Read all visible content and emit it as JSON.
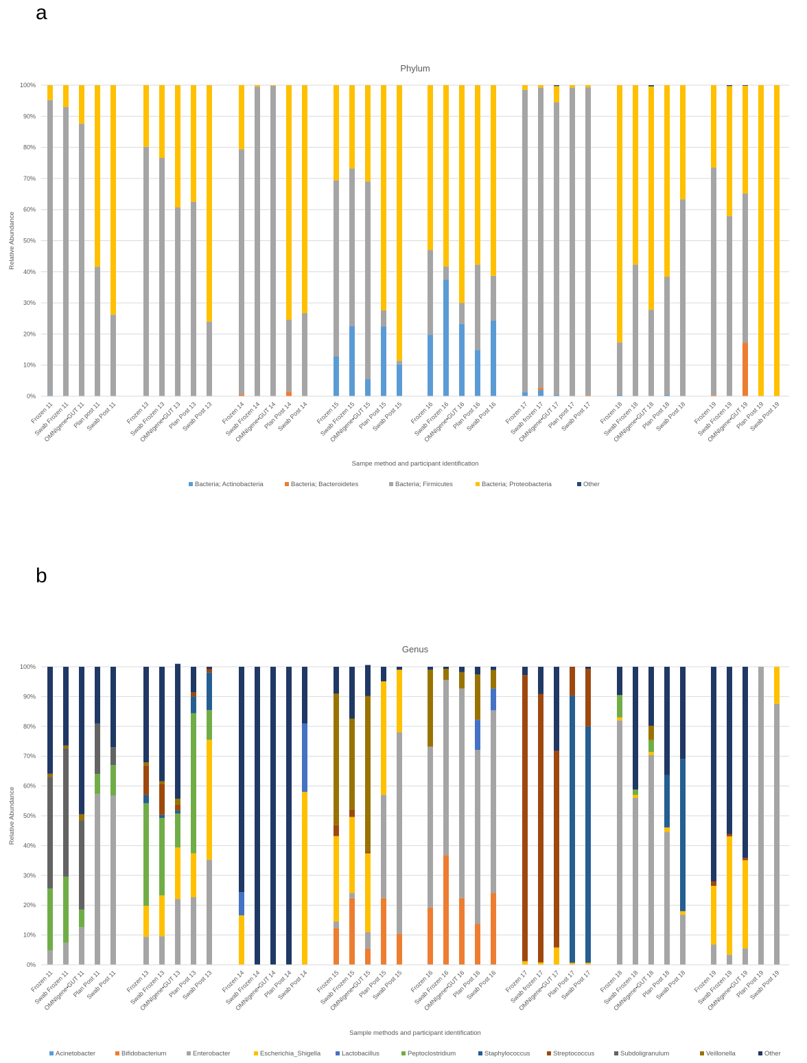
{
  "panels": {
    "a": "a",
    "b": "b"
  },
  "chart_data": [
    {
      "type": "bar",
      "stacked": true,
      "title": "Phylum",
      "xlabel": "Sampe method  and participant identification",
      "ylabel": "Relative Abundance",
      "ylim": [
        0,
        100
      ],
      "yticks": [
        "0%",
        "10%",
        "20%",
        "30%",
        "40%",
        "50%",
        "60%",
        "70%",
        "80%",
        "90%",
        "100%"
      ],
      "legend_position": "bottom",
      "categories": [
        "Frozen 11",
        "Swab Frozen 11",
        "OMNIgene•GUT 11",
        "Plan post 11",
        "Swab Post 11",
        "Frozen 13",
        "Swab Frozen 13",
        "OMNIgene•GUT 13",
        "Plan Post 13",
        "Swab Post 13",
        "Frozen 14",
        "Swab Frozen 14",
        "OMNIgene•GUT 14",
        "Plan Post 14",
        "Swab Post 14",
        "Frozen 15",
        "Swab Frozen 15",
        "OMNIgene•GUT 15",
        "Plan Post 15",
        "Swab Post 15",
        "Frozen 16",
        "Swab Frozen 16",
        "OMNIgene•GUT 16",
        "Plan Post 16",
        "Swab Post 16",
        "Frozen 17",
        "Swab frozen 17",
        "OMNIgene•GUT 17",
        "Plan post 17",
        "Swab Post 17",
        "Frozen 18",
        "Swab Frozen 18",
        "OMNIgene•GUT 18",
        "Plan Post 18",
        "Swab Post 18",
        "Frozen 19",
        "Swab Frozen 19",
        "OMNIgene•GUT 19",
        "Plan Post 19",
        "Swab Post 19"
      ],
      "series": [
        {
          "name": "Bacteria; Actinobacteria",
          "color": "#5b9bd5",
          "values": [
            0.3,
            0,
            0,
            0,
            0,
            0,
            0,
            0,
            0,
            0,
            0,
            0,
            0,
            0,
            0,
            12.8,
            22.6,
            5.5,
            22.4,
            10.2,
            19.8,
            37.5,
            23.2,
            14.8,
            24.3,
            1.3,
            2.0,
            0.5,
            0,
            0,
            0.5,
            0,
            0,
            0.5,
            0,
            0,
            0,
            0,
            0,
            0
          ]
        },
        {
          "name": "Bacteria; Bacteroidetes",
          "color": "#ed7d31",
          "values": [
            0,
            0,
            0,
            0,
            0,
            0,
            0,
            0,
            0,
            0,
            0.6,
            0,
            0,
            1.5,
            0,
            0,
            0,
            0,
            0,
            0,
            0,
            0,
            0,
            0,
            0,
            0,
            0.8,
            0,
            0,
            0.4,
            0,
            0,
            0,
            0,
            0,
            0.4,
            0,
            17.2,
            0,
            0
          ]
        },
        {
          "name": "Bacteria; Firmicutes",
          "color": "#a5a5a5",
          "values": [
            94.9,
            93.0,
            87.6,
            41.6,
            26.2,
            80.2,
            76.6,
            60.7,
            62.5,
            24.0,
            78.8,
            99.5,
            99.8,
            23.1,
            26.7,
            56.6,
            50.6,
            63.5,
            5.2,
            1.2,
            27.2,
            4.2,
            6.8,
            27.5,
            14.4,
            97.2,
            96.4,
            94.0,
            99.2,
            98.9,
            16.8,
            42.3,
            27.8,
            37.9,
            63.3,
            73.1,
            57.9,
            48.0,
            0,
            0
          ]
        },
        {
          "name": "Bacteria; Proteobacteria",
          "color": "#ffc000",
          "values": [
            4.8,
            7.0,
            12.4,
            58.4,
            73.8,
            19.8,
            23.4,
            39.3,
            37.5,
            76.0,
            20.6,
            0.5,
            0.2,
            75.4,
            73.3,
            30.6,
            26.8,
            31.0,
            72.4,
            88.6,
            53.0,
            58.3,
            70.0,
            57.7,
            61.3,
            1.5,
            0.8,
            5.2,
            0.8,
            0.7,
            82.7,
            57.7,
            71.8,
            61.6,
            36.7,
            26.5,
            41.8,
            34.6,
            100,
            100
          ]
        },
        {
          "name": "Other",
          "color": "#264478",
          "values": [
            0,
            0,
            0,
            0,
            0,
            0,
            0,
            0,
            0,
            0,
            0,
            0,
            0,
            0,
            0,
            0,
            0,
            0,
            0,
            0,
            0,
            0,
            0,
            0,
            0,
            0,
            0,
            0.3,
            0,
            0,
            0,
            0,
            0.4,
            0,
            0,
            0,
            0.3,
            0.2,
            0,
            0
          ]
        }
      ]
    },
    {
      "type": "bar",
      "stacked": true,
      "title": "Genus",
      "xlabel": "Sample methods and participant identification",
      "ylabel": "Relative Abundance",
      "ylim": [
        0,
        100
      ],
      "yticks": [
        "0%",
        "10%",
        "20%",
        "30%",
        "40%",
        "50%",
        "60%",
        "70%",
        "80%",
        "90%",
        "100%"
      ],
      "legend_position": "bottom",
      "categories": [
        "Frozen 11",
        "Swab Frozen 11",
        "OMNIgene•GUT 11",
        "Plan Post 11",
        "Swab Post 11",
        "Frozen 13",
        "Swab Frozen 13",
        "OMNIgene•GUT 13",
        "Plan Post 13",
        "Swab Post 13",
        "Frozen 14",
        "Swab Frozen 14",
        "OMNIgene•GUT 14",
        "Plan Post 14",
        "Swab Post 14",
        "Frozen 15",
        "Swab Frozen 15",
        "OMNIgene•GUT 15",
        "Plan Post 15",
        "Swab Post 15",
        "Frozen 16",
        "Swab Frozen 16",
        "OMNIgene•GUT 16",
        "Plan Post 16",
        "Swab Post 16",
        "Frozen 17",
        "Swab frozen 17",
        "OMNIgene•GUT 17",
        "Plan Post 17",
        "Swab Post 17",
        "Frozen 18",
        "Swab Frozen 18",
        "OMNIgene•GUT 18",
        "Plan Post 18",
        "Swab Post 18",
        "Frozen 19",
        "Swab Frozen 19",
        "OMNIgene•GUT 19",
        "Plan Post 19",
        "Swab Post 19"
      ],
      "series": [
        {
          "name": "Acinetobacter",
          "color": "#5b9bd5",
          "values": [
            0,
            0,
            0,
            0,
            0,
            0,
            0,
            0,
            0,
            0,
            0,
            0,
            0,
            0,
            0,
            0,
            0,
            0,
            0,
            0,
            0,
            0,
            0,
            0,
            0,
            0,
            0,
            0,
            0,
            0,
            0,
            0,
            0,
            0,
            0,
            0,
            0,
            0,
            0,
            0
          ]
        },
        {
          "name": "Bifidobacterium",
          "color": "#ed7d31",
          "values": [
            0,
            0,
            0,
            0,
            0,
            0,
            0,
            0,
            0,
            0,
            0,
            0,
            0,
            0,
            0,
            12.3,
            22.4,
            5.4,
            22.4,
            10.4,
            19.2,
            36.8,
            22.4,
            13.7,
            24.1,
            0,
            0,
            0,
            0,
            0,
            0,
            0,
            0,
            0,
            0,
            0,
            0,
            0,
            0,
            0
          ]
        },
        {
          "name": "Enterobacter",
          "color": "#a5a5a5",
          "values": [
            4.8,
            7.4,
            12.6,
            57.3,
            56.8,
            9.4,
            9.6,
            22.1,
            22.7,
            35.3,
            0,
            0,
            0,
            0,
            0,
            2.2,
            1.7,
            5.6,
            34.6,
            67.6,
            54.0,
            58.8,
            70.3,
            58.4,
            61.3,
            0,
            0,
            0,
            0,
            0,
            82.0,
            56.0,
            70.4,
            44.6,
            16.8,
            6.8,
            3.4,
            5.5,
            100,
            87.6
          ]
        },
        {
          "name": "Escherichia_Shigella",
          "color": "#ffc000",
          "values": [
            0,
            0,
            0,
            0,
            0,
            10.4,
            13.7,
            17.3,
            14.7,
            40.2,
            16.6,
            0,
            0,
            0,
            58.0,
            28.7,
            25.5,
            26.4,
            38.1,
            21.0,
            0,
            0,
            0,
            0,
            0,
            1.2,
            0.8,
            5.8,
            0.7,
            0.7,
            1.0,
            1.0,
            1.0,
            1.5,
            1.2,
            19.7,
            39.7,
            29.6,
            0,
            12.4
          ]
        },
        {
          "name": "Lactobacillus",
          "color": "#4472c4",
          "values": [
            0,
            0,
            0,
            0,
            0,
            0,
            0,
            0,
            0,
            0,
            7.8,
            0,
            0,
            0,
            23.0,
            0,
            0,
            0,
            0,
            0,
            0,
            0,
            0,
            10.1,
            7.3,
            0,
            0,
            0,
            0,
            0,
            0,
            0,
            0,
            0,
            0,
            0,
            0,
            0,
            0,
            0
          ]
        },
        {
          "name": "Peptoclostridium",
          "color": "#70ad47",
          "values": [
            20.8,
            22.2,
            5.9,
            6.7,
            10.2,
            34.4,
            26.0,
            11.4,
            47.0,
            10.0,
            0,
            0,
            0,
            0,
            0,
            0,
            0,
            0,
            0,
            0,
            0,
            0,
            0,
            0,
            0,
            0,
            0,
            0,
            0,
            0,
            7.5,
            1.8,
            4.0,
            0,
            0,
            0,
            0,
            0,
            0,
            0
          ]
        },
        {
          "name": "Staphylococcus",
          "color": "#255e91",
          "values": [
            0,
            0,
            0,
            0,
            0,
            2.8,
            1.0,
            1.0,
            5.6,
            12.5,
            0,
            0,
            0,
            0,
            0,
            0,
            0,
            0,
            0,
            0,
            0,
            0,
            0,
            0,
            0,
            0,
            0,
            0,
            89.6,
            79.3,
            0,
            0,
            0,
            17.6,
            51.1,
            0,
            0,
            0,
            0,
            0
          ]
        },
        {
          "name": "Streptococcus",
          "color": "#9e480e",
          "values": [
            0,
            0,
            0,
            0,
            0,
            9.9,
            10.3,
            1.9,
            1.4,
            1.2,
            0,
            0,
            0,
            0,
            0,
            3.6,
            2.5,
            0.6,
            0,
            0,
            0,
            0,
            0,
            0,
            0,
            96.0,
            90.1,
            66.0,
            9.6,
            19.3,
            0,
            0,
            0,
            0,
            0,
            1.5,
            0.8,
            0.8,
            0,
            0
          ]
        },
        {
          "name": "Subdoligranulum",
          "color": "#636363",
          "values": [
            37.5,
            43.0,
            30.0,
            17.0,
            6.0,
            0,
            0,
            0,
            0,
            0,
            0,
            0,
            0,
            0,
            0,
            0,
            0,
            0,
            0,
            0,
            0,
            0,
            0,
            0,
            0,
            0,
            0,
            0,
            0,
            0,
            0,
            0,
            0,
            0,
            0,
            0,
            0,
            0,
            0,
            0
          ]
        },
        {
          "name": "Veillonella",
          "color": "#997300",
          "values": [
            1.0,
            1.0,
            2.0,
            0,
            0,
            1.0,
            1.0,
            2.0,
            0,
            0,
            0,
            0,
            0,
            0,
            0,
            44.2,
            30.5,
            52.2,
            0,
            0,
            25.8,
            3.7,
            5.5,
            15.2,
            6.2,
            0,
            0,
            0,
            0,
            0,
            0,
            0,
            4.8,
            0,
            0,
            0,
            0,
            0,
            0,
            0
          ]
        },
        {
          "name": "Other",
          "color": "#203864",
          "values": [
            35.9,
            26.4,
            49.5,
            19.0,
            27.0,
            32.1,
            38.4,
            45.3,
            8.6,
            0.8,
            75.6,
            100,
            100,
            100,
            19.0,
            9.0,
            17.4,
            10.4,
            4.9,
            1.0,
            1.0,
            0.7,
            1.8,
            2.6,
            1.1,
            2.8,
            9.1,
            28.2,
            0.1,
            0.7,
            9.5,
            41.2,
            19.8,
            36.3,
            30.9,
            72.0,
            56.1,
            64.1,
            0,
            0
          ]
        }
      ]
    }
  ]
}
